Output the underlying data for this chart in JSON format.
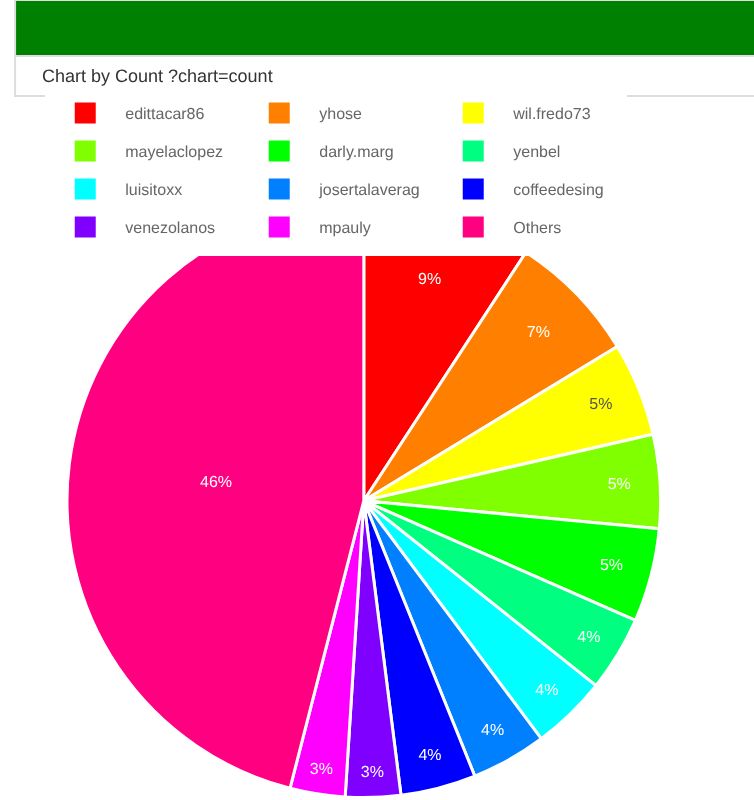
{
  "chart_data": {
    "type": "pie",
    "title": "Chart by Count ?chart=count",
    "categories": [
      "edittacar86",
      "yhose",
      "wil.fredo73",
      "mayelaclopez",
      "darly.marg",
      "yenbel",
      "luisitoxx",
      "josertalaverag",
      "coffeedesing",
      "venezolanos",
      "mpauly",
      "Others"
    ],
    "values": [
      9.2,
      7.1,
      5.1,
      5.1,
      5.1,
      4.1,
      4.1,
      4.1,
      4.1,
      3.0,
      3.0,
      46.0
    ],
    "value_labels": [
      "9%",
      "7%",
      "5%",
      "5%",
      "5%",
      "4%",
      "4%",
      "4%",
      "4%",
      "3%",
      "3%",
      "46%"
    ],
    "colors": [
      "#ff0000",
      "#ff8000",
      "#ffff00",
      "#80ff00",
      "#00ff00",
      "#00ff80",
      "#00ffff",
      "#0080ff",
      "#0000ff",
      "#8000ff",
      "#ff00ff",
      "#ff0080"
    ],
    "legend": "top"
  }
}
